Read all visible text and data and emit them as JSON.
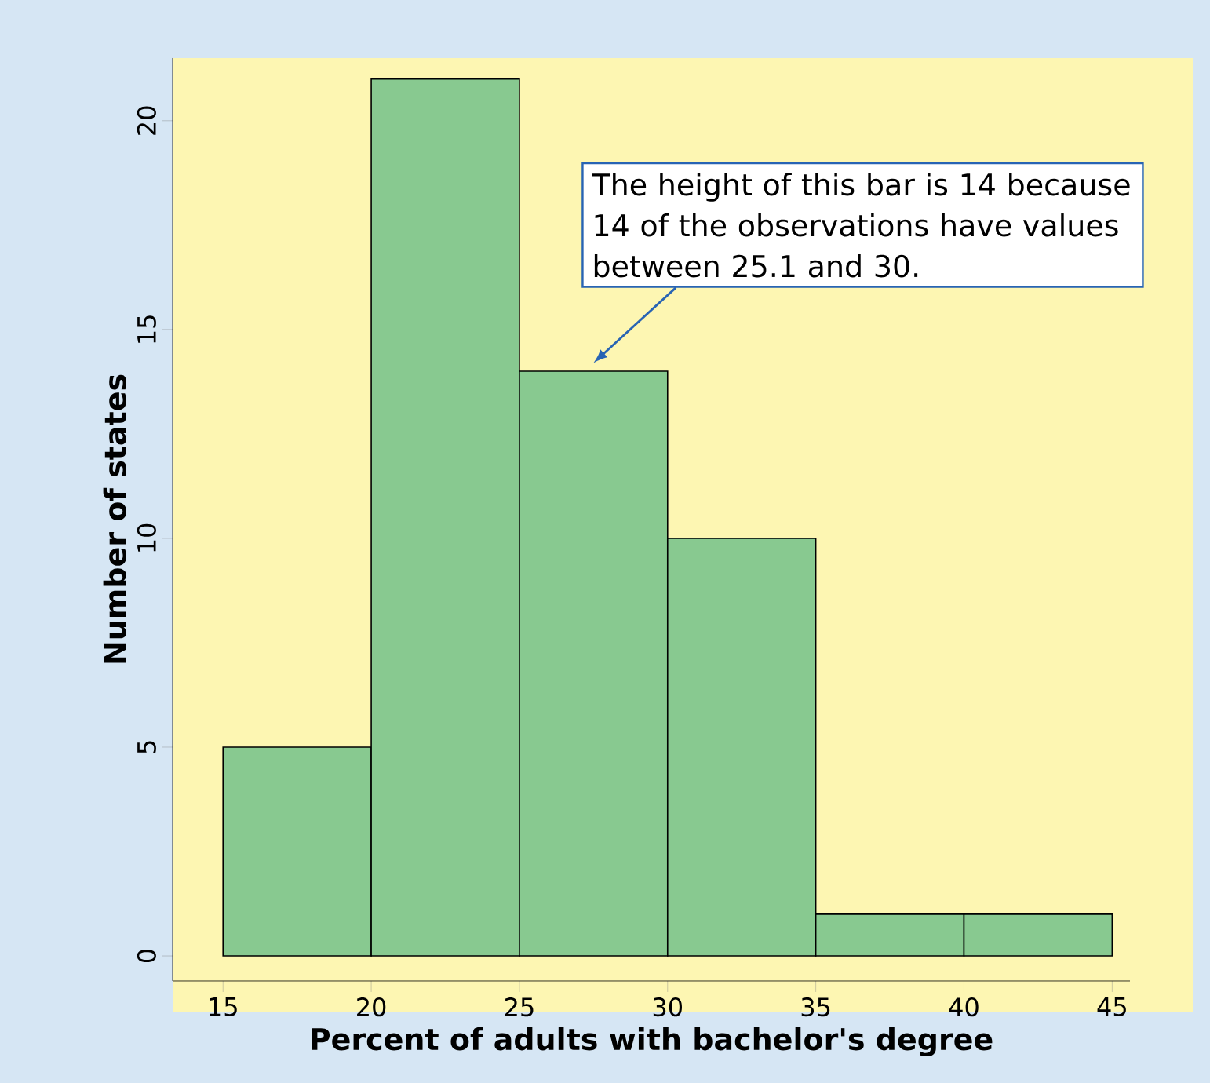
{
  "chart_data": {
    "type": "histogram",
    "xlabel": "Percent of adults with bachelor's degree",
    "ylabel": "Number of states",
    "bins": [
      15,
      20,
      25,
      30,
      35,
      40,
      45
    ],
    "values": [
      5,
      21,
      14,
      10,
      1,
      1
    ],
    "color": "#88c990",
    "xlim": [
      13.3,
      45.6
    ],
    "ylim": [
      -0.6,
      21.5
    ],
    "xticks": [
      15,
      20,
      25,
      30,
      35,
      40,
      45
    ],
    "yticks": [
      0,
      5,
      10,
      15,
      20
    ],
    "annotations": [
      "The height of this bar is 14 because 14 of the observations have values between 25.1 and 30."
    ]
  }
}
